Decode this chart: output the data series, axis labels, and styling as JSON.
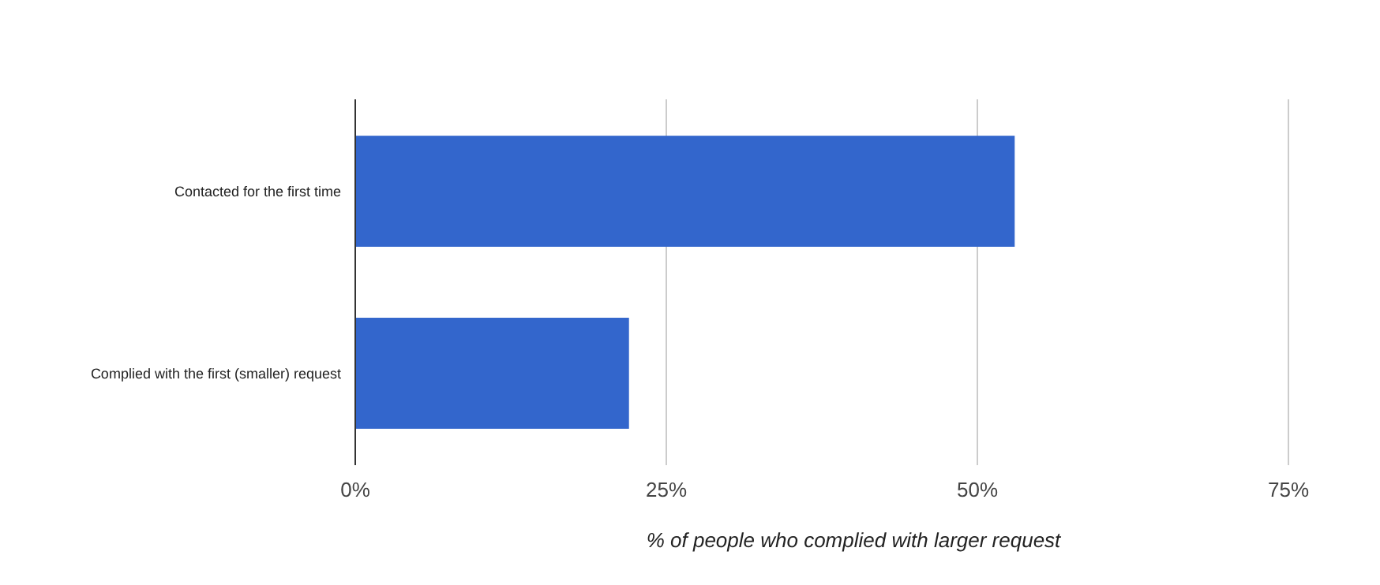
{
  "chart_data": {
    "type": "bar",
    "orientation": "horizontal",
    "categories": [
      "Contacted for the first time",
      "Complied with the first (smaller) request"
    ],
    "values": [
      53,
      22
    ],
    "color": "#3366cc",
    "xlim": [
      0,
      75
    ],
    "xticks": [
      {
        "value": 0,
        "label": "0%"
      },
      {
        "value": 25,
        "label": "25%"
      },
      {
        "value": 50,
        "label": "50%"
      },
      {
        "value": 75,
        "label": "75%"
      }
    ],
    "xlabel": "% of people who complied with larger request",
    "grid": "x"
  }
}
